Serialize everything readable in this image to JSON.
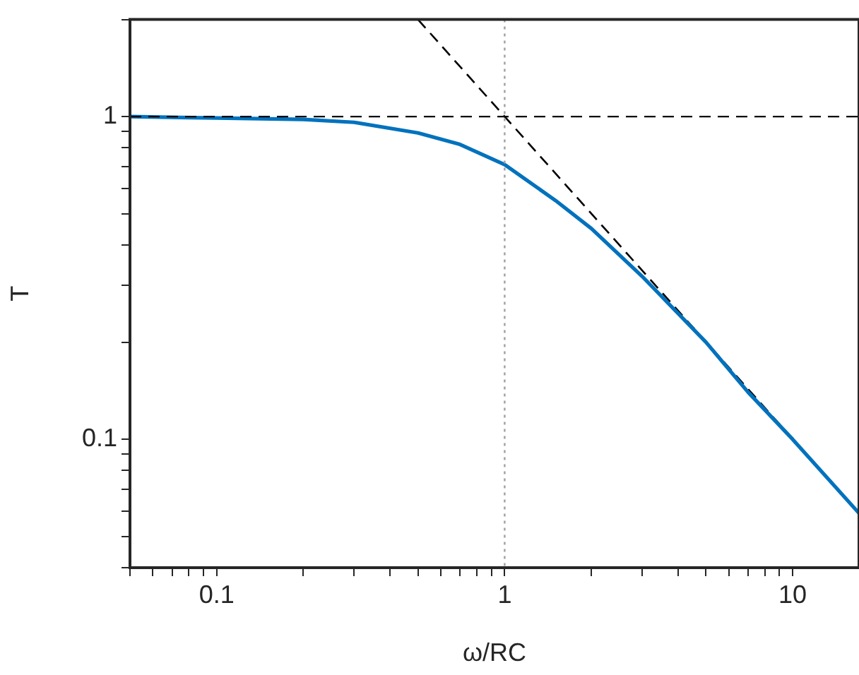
{
  "chart_data": {
    "type": "line",
    "xlabel": "ω/RC",
    "ylabel": "T",
    "log": "xy",
    "grid": false,
    "legend": false,
    "marker": "none",
    "xlim": [
      0.05,
      17
    ],
    "ylim": [
      0.04,
      2
    ],
    "xticks": [
      {
        "value": 0.05,
        "label": null
      },
      {
        "value": 0.06,
        "label": null
      },
      {
        "value": 0.07,
        "label": null
      },
      {
        "value": 0.08,
        "label": null
      },
      {
        "value": 0.09,
        "label": null
      },
      0.1,
      {
        "value": 0.2,
        "label": null
      },
      {
        "value": 0.3,
        "label": null
      },
      {
        "value": 0.4,
        "label": null
      },
      {
        "value": 0.5,
        "label": null
      },
      {
        "value": 0.6,
        "label": null
      },
      {
        "value": 0.7,
        "label": null
      },
      {
        "value": 0.8,
        "label": null
      },
      {
        "value": 0.9,
        "label": null
      },
      1,
      {
        "value": 2,
        "label": null
      },
      {
        "value": 3,
        "label": null
      },
      {
        "value": 4,
        "label": null
      },
      {
        "value": 5,
        "label": null
      },
      {
        "value": 6,
        "label": null
      },
      {
        "value": 7,
        "label": null
      },
      {
        "value": 8,
        "label": null
      },
      {
        "value": 9,
        "label": null
      },
      10
    ],
    "yticks": [
      {
        "value": 0.04,
        "label": null
      },
      {
        "value": 0.05,
        "label": null
      },
      {
        "value": 0.06,
        "label": null
      },
      {
        "value": 0.07,
        "label": null
      },
      {
        "value": 0.08,
        "label": null
      },
      {
        "value": 0.09,
        "label": null
      },
      0.1,
      {
        "value": 0.2,
        "label": null
      },
      {
        "value": 0.3,
        "label": null
      },
      {
        "value": 0.4,
        "label": null
      },
      {
        "value": 0.5,
        "label": null
      },
      {
        "value": 0.6,
        "label": null
      },
      {
        "value": 0.7,
        "label": null
      },
      {
        "value": 0.8,
        "label": null
      },
      {
        "value": 0.9,
        "label": null
      },
      1,
      {
        "value": 2,
        "label": null
      }
    ],
    "series": [
      {
        "color": "#0072bd",
        "line_style": "solid",
        "x": [
          0.05,
          0.1,
          0.2,
          0.3,
          0.5,
          0.7,
          1,
          1.5,
          2,
          3,
          5,
          7,
          10,
          17
        ],
        "values": [
          1.0,
          0.99,
          0.98,
          0.96,
          0.89,
          0.82,
          0.71,
          0.55,
          0.45,
          0.32,
          0.2,
          0.14,
          0.1,
          0.059
        ]
      },
      {
        "color": "#000000",
        "line_style": "dashed",
        "x": [
          0.5,
          17
        ],
        "values": [
          2,
          0.059
        ]
      }
    ],
    "ref_lines": [
      {
        "axis": "y",
        "value": 1,
        "color": "#000000",
        "line_style": "dashed"
      },
      {
        "axis": "x",
        "value": 1,
        "color": "#a0a0a0",
        "line_style": "dotted"
      }
    ]
  }
}
